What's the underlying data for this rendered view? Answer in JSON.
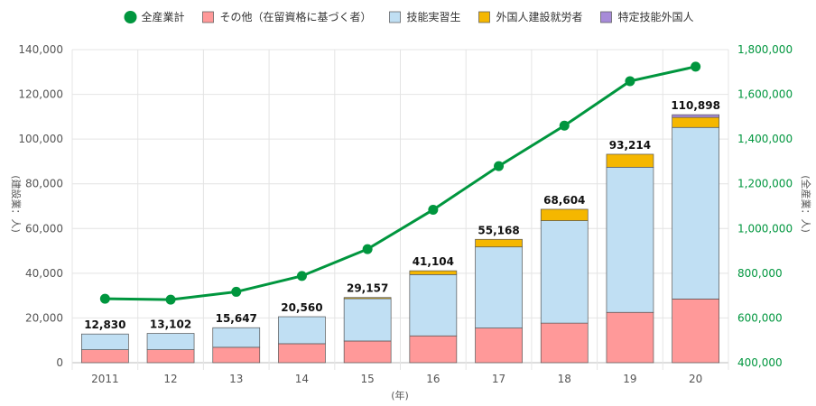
{
  "chart_data": {
    "type": "bar",
    "subtype": "stacked bar with line (dual axis)",
    "categories": [
      "2011",
      "12",
      "13",
      "14",
      "15",
      "16",
      "17",
      "18",
      "19",
      "20"
    ],
    "xlabel": "(年)",
    "ylabel_left": "(建設業：人)",
    "ylabel_right": "(全産業：人)",
    "ylim_left": [
      0,
      140000
    ],
    "ylim_right": [
      400000,
      1800000
    ],
    "yticks_left": [
      "0",
      "20,000",
      "40,000",
      "60,000",
      "80,000",
      "100,000",
      "120,000",
      "140,000"
    ],
    "yticks_right": [
      "400,000",
      "600,000",
      "800,000",
      "1,000,000",
      "1,200,000",
      "1,400,000",
      "1,600,000",
      "1,800,000"
    ],
    "grid": true,
    "legend_position": "top",
    "series": [
      {
        "name": "その他（在留資格に基づく者）",
        "kind": "bar",
        "color": "#ff9999",
        "values": [
          5800,
          5800,
          6900,
          8500,
          9700,
          12000,
          15500,
          17700,
          22500,
          28500
        ]
      },
      {
        "name": "技能実習生",
        "kind": "bar",
        "color": "#c0dff3",
        "values": [
          7030,
          7302,
          8747,
          12060,
          18957,
          27404,
          36268,
          45804,
          64914,
          76698
        ]
      },
      {
        "name": "外国人建設就労者",
        "kind": "bar",
        "color": "#f5b700",
        "values": [
          0,
          0,
          0,
          0,
          500,
          1700,
          3400,
          5100,
          5800,
          4500
        ]
      },
      {
        "name": "特定技能外国人",
        "kind": "bar",
        "color": "#a78bd8",
        "values": [
          0,
          0,
          0,
          0,
          0,
          0,
          0,
          0,
          0,
          1200
        ]
      },
      {
        "name": "全産業計",
        "kind": "line",
        "axis": "right",
        "color": "#00963e",
        "values": [
          686000,
          682000,
          717000,
          788000,
          908000,
          1084000,
          1279000,
          1460000,
          1659000,
          1724000
        ]
      }
    ],
    "totals": [
      12830,
      13102,
      15647,
      20560,
      29157,
      41104,
      55168,
      68604,
      93214,
      110898
    ],
    "total_labels": [
      "12,830",
      "13,102",
      "15,647",
      "20,560",
      "29,157",
      "41,104",
      "55,168",
      "68,604",
      "93,214",
      "110,898"
    ]
  }
}
